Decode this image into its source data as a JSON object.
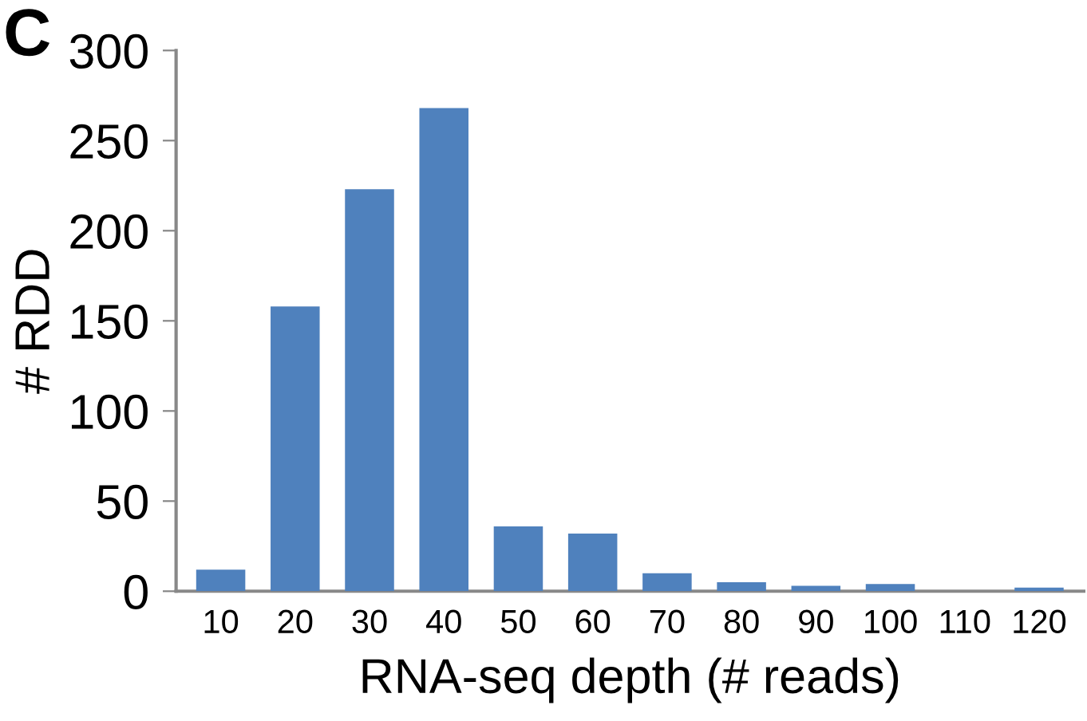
{
  "chart_data": {
    "type": "bar",
    "xlabel": "RNA-seq depth (# reads)",
    "ylabel": "# RDD",
    "annotations": [
      "C"
    ],
    "categories": [
      "10",
      "20",
      "30",
      "40",
      "50",
      "60",
      "70",
      "80",
      "90",
      "100",
      "110",
      "120"
    ],
    "values": [
      12,
      158,
      223,
      268,
      36,
      32,
      10,
      5,
      3,
      4,
      0,
      2
    ],
    "color": "#4f81bd",
    "ylim": [
      0,
      300
    ],
    "yticks": [
      0,
      50,
      100,
      150,
      200,
      250,
      300
    ],
    "grid": false
  }
}
